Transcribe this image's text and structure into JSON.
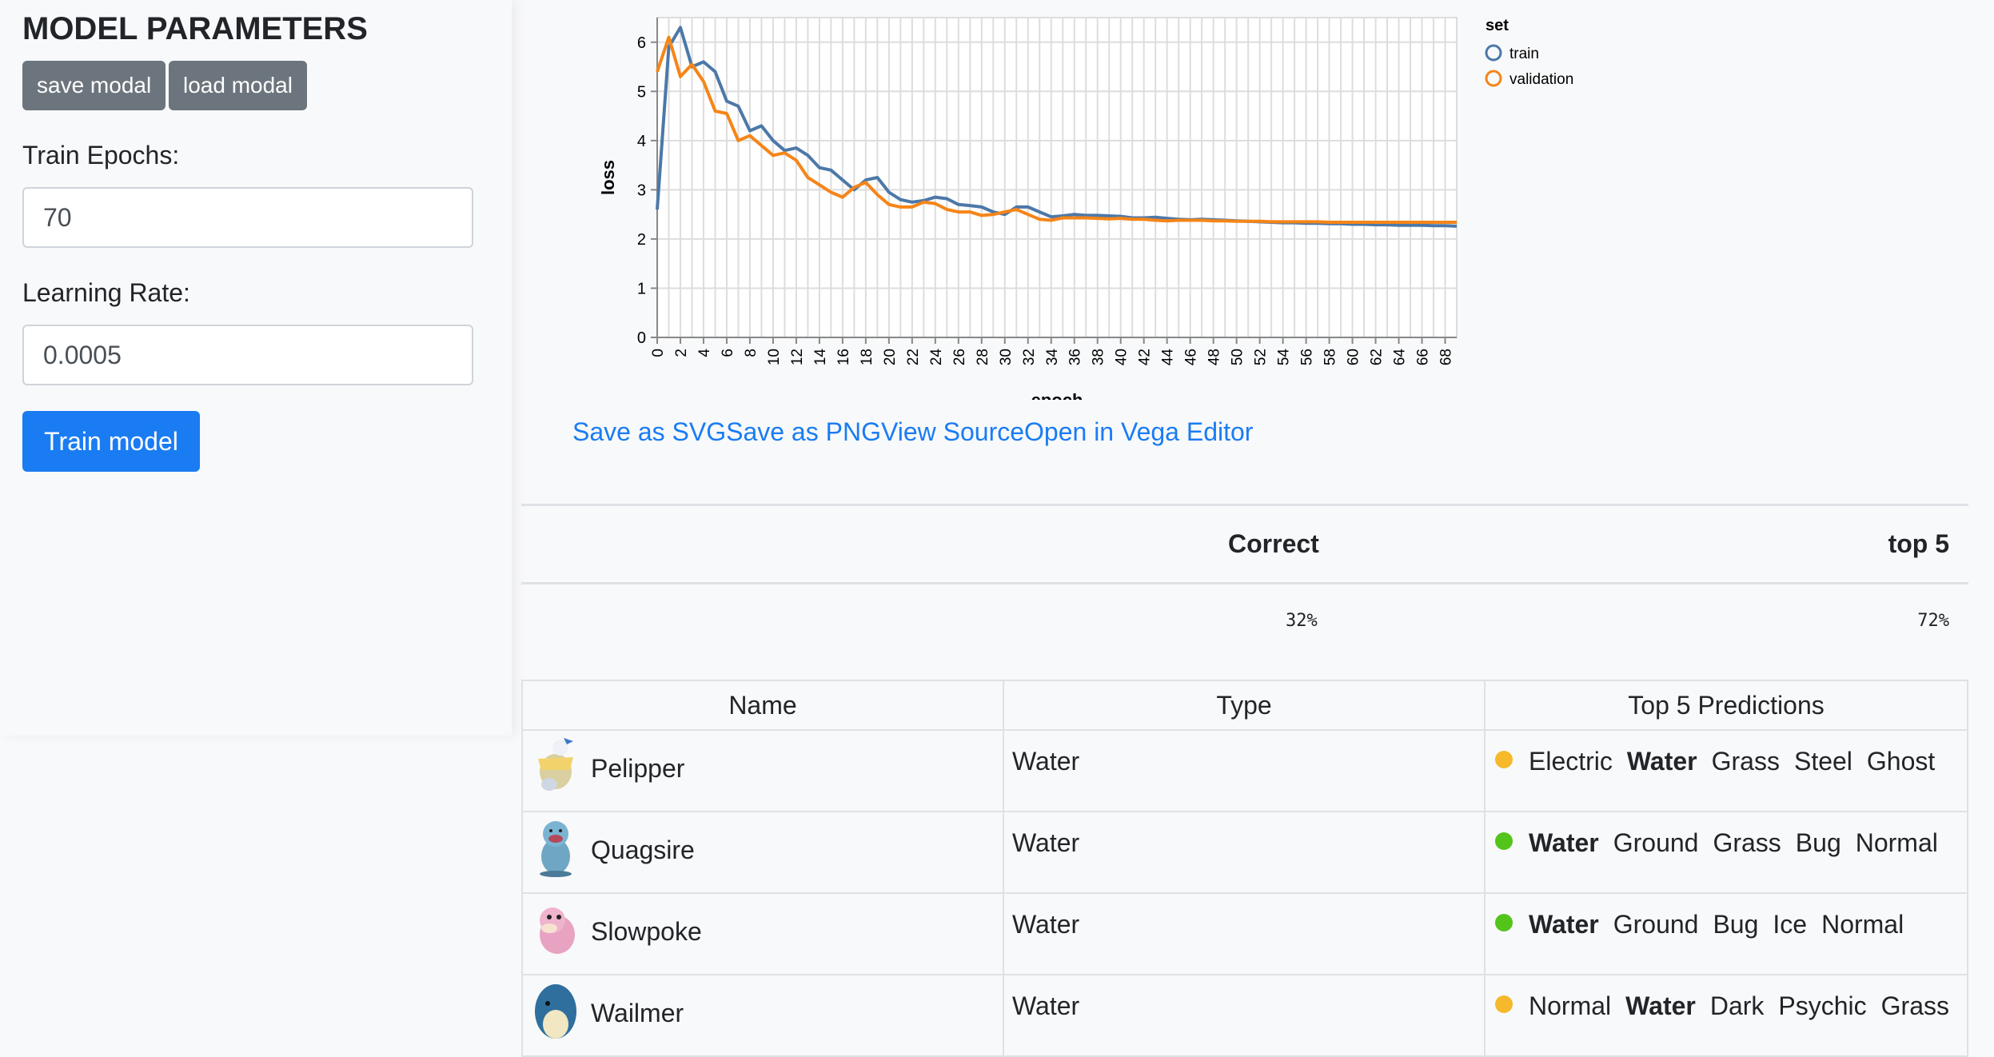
{
  "sidebar": {
    "title": "MODEL PARAMETERS",
    "save_label": "save modal",
    "load_label": "load modal",
    "epochs_label": "Train Epochs:",
    "epochs_value": "70",
    "lr_label": "Learning Rate:",
    "lr_value": "0.0005",
    "train_label": "Train model"
  },
  "chart_data": {
    "type": "line",
    "xlabel": "epoch",
    "ylabel": "loss",
    "xlim": [
      0,
      69
    ],
    "ylim": [
      0,
      6.5
    ],
    "yticks": [
      0,
      1,
      2,
      3,
      4,
      5,
      6
    ],
    "xticks": [
      0,
      2,
      4,
      6,
      8,
      10,
      12,
      14,
      16,
      18,
      20,
      22,
      24,
      26,
      28,
      30,
      32,
      34,
      36,
      38,
      40,
      42,
      44,
      46,
      48,
      50,
      52,
      54,
      56,
      58,
      60,
      62,
      64,
      66,
      68
    ],
    "grid": true,
    "legend": {
      "title": "set",
      "position": "top-right"
    },
    "colors": {
      "train": "#4c78a8",
      "validation": "#f58518"
    },
    "series": [
      {
        "name": "train",
        "values": [
          2.6,
          5.9,
          6.3,
          5.5,
          5.6,
          5.4,
          4.8,
          4.7,
          4.2,
          4.3,
          4.0,
          3.8,
          3.85,
          3.7,
          3.45,
          3.4,
          3.2,
          3.0,
          3.2,
          3.25,
          2.95,
          2.8,
          2.75,
          2.78,
          2.85,
          2.82,
          2.7,
          2.68,
          2.65,
          2.55,
          2.5,
          2.65,
          2.65,
          2.55,
          2.45,
          2.47,
          2.5,
          2.48,
          2.48,
          2.47,
          2.46,
          2.43,
          2.43,
          2.44,
          2.42,
          2.4,
          2.39,
          2.4,
          2.39,
          2.38,
          2.37,
          2.36,
          2.35,
          2.34,
          2.33,
          2.33,
          2.32,
          2.32,
          2.31,
          2.31,
          2.3,
          2.3,
          2.29,
          2.29,
          2.28,
          2.28,
          2.28,
          2.27,
          2.27,
          2.26
        ]
      },
      {
        "name": "validation",
        "values": [
          5.4,
          6.1,
          5.3,
          5.55,
          5.2,
          4.6,
          4.55,
          4.0,
          4.1,
          3.9,
          3.7,
          3.75,
          3.6,
          3.25,
          3.1,
          2.95,
          2.85,
          3.05,
          3.15,
          2.9,
          2.7,
          2.65,
          2.65,
          2.75,
          2.72,
          2.6,
          2.55,
          2.55,
          2.48,
          2.5,
          2.55,
          2.6,
          2.5,
          2.4,
          2.38,
          2.43,
          2.43,
          2.43,
          2.42,
          2.41,
          2.42,
          2.4,
          2.4,
          2.38,
          2.37,
          2.38,
          2.38,
          2.38,
          2.37,
          2.37,
          2.36,
          2.36,
          2.36,
          2.35,
          2.35,
          2.35,
          2.35,
          2.35,
          2.34,
          2.34,
          2.34,
          2.34,
          2.34,
          2.34,
          2.34,
          2.34,
          2.34,
          2.34,
          2.34,
          2.34
        ]
      }
    ]
  },
  "actions": [
    "Save as SVG",
    "Save as PNG",
    "View Source",
    "Open in Vega Editor"
  ],
  "summary": {
    "correct_label": "Correct",
    "top5_label": "top 5",
    "correct_value": "32%",
    "top5_value": "72%"
  },
  "table": {
    "headers": [
      "Name",
      "Type",
      "Top 5 Predictions"
    ],
    "rows": [
      {
        "name": "Pelipper",
        "type": "Water",
        "status_color": "#f6b92b",
        "icon": "pelipper-icon",
        "predictions": [
          {
            "label": "Electric",
            "bold": false
          },
          {
            "label": "Water",
            "bold": true
          },
          {
            "label": "Grass",
            "bold": false
          },
          {
            "label": "Steel",
            "bold": false
          },
          {
            "label": "Ghost",
            "bold": false
          }
        ]
      },
      {
        "name": "Quagsire",
        "type": "Water",
        "status_color": "#52c41a",
        "icon": "quagsire-icon",
        "predictions": [
          {
            "label": "Water",
            "bold": true
          },
          {
            "label": "Ground",
            "bold": false
          },
          {
            "label": "Grass",
            "bold": false
          },
          {
            "label": "Bug",
            "bold": false
          },
          {
            "label": "Normal",
            "bold": false
          }
        ]
      },
      {
        "name": "Slowpoke",
        "type": "Water",
        "status_color": "#52c41a",
        "icon": "slowpoke-icon",
        "predictions": [
          {
            "label": "Water",
            "bold": true
          },
          {
            "label": "Ground",
            "bold": false
          },
          {
            "label": "Bug",
            "bold": false
          },
          {
            "label": "Ice",
            "bold": false
          },
          {
            "label": "Normal",
            "bold": false
          }
        ]
      },
      {
        "name": "Wailmer",
        "type": "Water",
        "status_color": "#f6b92b",
        "icon": "wailmer-icon",
        "predictions": [
          {
            "label": "Normal",
            "bold": false
          },
          {
            "label": "Water",
            "bold": true
          },
          {
            "label": "Dark",
            "bold": false
          },
          {
            "label": "Psychic",
            "bold": false
          },
          {
            "label": "Grass",
            "bold": false
          }
        ]
      }
    ]
  }
}
